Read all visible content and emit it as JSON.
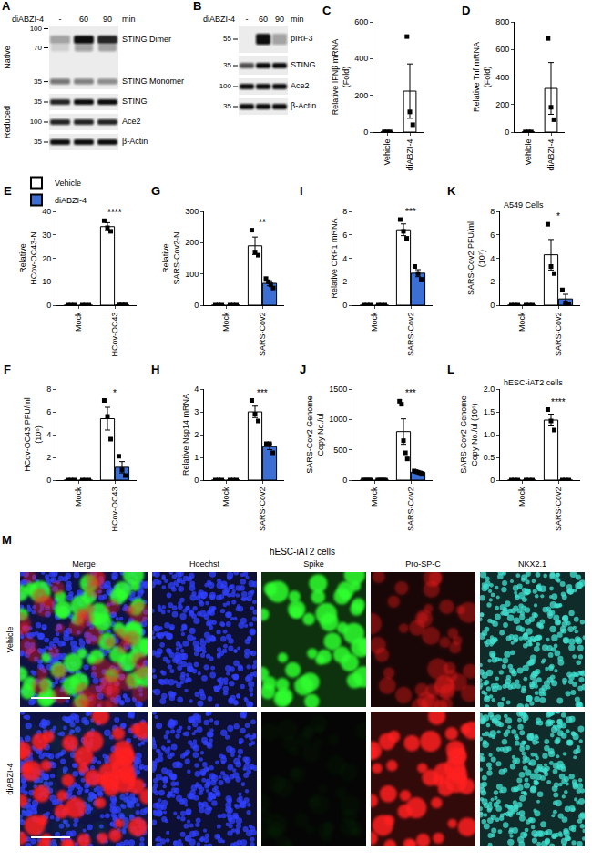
{
  "figure": {
    "A": {
      "letter": "A",
      "treatment": "diABZI-4",
      "lanes": [
        "-",
        "60",
        "90"
      ],
      "unit": "min",
      "sections": [
        {
          "label": "Native",
          "markers": [
            100,
            70,
            35
          ],
          "rows": [
            {
              "label": "STING Dimer",
              "bands": [
                0.35,
                1,
                0.9
              ]
            },
            {
              "label": "STING Monomer",
              "bands": [
                0.55,
                0.5,
                0.45
              ]
            }
          ]
        },
        {
          "label": "Reduced",
          "rows": [
            {
              "label": "STING",
              "marker": 35,
              "bands": [
                0.9,
                1,
                1
              ]
            },
            {
              "label": "Ace2",
              "marker": 100,
              "bands": [
                0.9,
                0.9,
                0.9
              ]
            },
            {
              "label": "β-Actin",
              "marker": 35,
              "bands": [
                1,
                1,
                1
              ]
            }
          ]
        }
      ]
    },
    "B": {
      "letter": "B",
      "treatment": "diABZI-4",
      "lanes": [
        "-",
        "60",
        "90"
      ],
      "unit": "min",
      "rows": [
        {
          "label": "pIRF3",
          "marker": 55,
          "bands": [
            0,
            1,
            0.35
          ]
        },
        {
          "label": "STING",
          "marker": 35,
          "bands": [
            0.7,
            1,
            1
          ]
        },
        {
          "label": "Ace2",
          "marker": 100,
          "bands": [
            1,
            1,
            1
          ]
        },
        {
          "label": "β-Actin",
          "marker": 35,
          "bands": [
            1,
            1,
            1
          ]
        }
      ]
    },
    "M": {
      "letter": "M",
      "title": "hESC-iAT2 cells",
      "columns": [
        "Merge",
        "Hoechst",
        "Spike",
        "Pro-SP-C",
        "NKX2.1"
      ],
      "channel_colors": [
        "#3040ff",
        "#30ff30",
        "#ff2020",
        "#40e0d0"
      ],
      "rows": [
        {
          "label": "Vehicle",
          "levels": [
            1,
            1,
            0.45,
            1
          ]
        },
        {
          "label": "diABZI-4",
          "levels": [
            1,
            0.03,
            1,
            1
          ]
        }
      ]
    }
  },
  "chart_data": [
    {
      "letter": "C",
      "type": "bar",
      "ylabel": "Relative IFNβ mRNA (Fold)",
      "categories": [
        "Vehicle",
        "diABZI-4"
      ],
      "values": [
        1,
        223
      ],
      "errors": [
        0.2,
        148
      ],
      "points": [
        [
          1,
          1,
          1
        ],
        [
          520,
          110,
          40
        ]
      ],
      "color": "#ffffff",
      "marker": "square",
      "ylim": [
        0,
        600
      ],
      "yticks": [
        0,
        200,
        400,
        600
      ]
    },
    {
      "letter": "D",
      "type": "bar",
      "ylabel": "Relative Tnf mRNA (Fold)",
      "categories": [
        "Vehicle",
        "diABZI-4"
      ],
      "values": [
        1,
        317
      ],
      "errors": [
        0.2,
        188
      ],
      "points": [
        [
          1,
          1,
          1
        ],
        [
          680,
          180,
          90
        ]
      ],
      "color": "#ffffff",
      "marker": "square",
      "ylim": [
        0,
        800
      ],
      "yticks": [
        0,
        200,
        400,
        600,
        800
      ]
    },
    {
      "letter": "E",
      "type": "bar",
      "ylabel": "Relative HCov-OC43-N",
      "categories": [
        "Mock",
        "HCov-OC43"
      ],
      "legend": "top left",
      "marker": "square",
      "series": [
        {
          "name": "Vehicle",
          "color": "#ffffff",
          "values": [
            0,
            33.5
          ],
          "errors": [
            0,
            1.7
          ],
          "points": [
            [
              0,
              0,
              0
            ],
            [
              36,
              33,
              31.5
            ]
          ]
        },
        {
          "name": "diABZI-4",
          "color": "#3b6fd4",
          "values": [
            0,
            0.1
          ],
          "errors": [
            0,
            0
          ],
          "points": [
            [
              0,
              0,
              0
            ],
            [
              0.1,
              0.1,
              0.1
            ]
          ]
        }
      ],
      "significance": [
        null,
        "****"
      ],
      "ylim": [
        0,
        40
      ],
      "yticks": [
        0,
        10,
        20,
        30,
        40
      ]
    },
    {
      "letter": "F",
      "type": "bar",
      "ylabel": "HCov-OC43 PFU/ml (10⁶)",
      "categories": [
        "Mock",
        "HCov-OC43"
      ],
      "marker": "square",
      "series": [
        {
          "name": "Vehicle",
          "color": "#ffffff",
          "values": [
            0,
            5.4
          ],
          "errors": [
            0,
            1.0
          ],
          "points": [
            [
              0,
              0,
              0
            ],
            [
              7.0,
              5.6,
              3.6
            ]
          ]
        },
        {
          "name": "diABZI-4",
          "color": "#3b6fd4",
          "values": [
            0,
            1.13
          ],
          "errors": [
            0,
            0.5
          ],
          "points": [
            [
              0,
              0,
              0
            ],
            [
              2.1,
              0.9,
              0.4
            ]
          ]
        }
      ],
      "significance": [
        null,
        "*"
      ],
      "ylim": [
        0,
        8
      ],
      "yticks": [
        0,
        2,
        4,
        6,
        8
      ]
    },
    {
      "letter": "G",
      "type": "bar",
      "ylabel": "Relative SARS-Cov2-N",
      "categories": [
        "Mock",
        "SARS-Cov2"
      ],
      "marker": "square",
      "series": [
        {
          "name": "Vehicle",
          "color": "#ffffff",
          "values": [
            0,
            190
          ],
          "errors": [
            0,
            28
          ],
          "points": [
            [
              0,
              0,
              0
            ],
            [
              240,
              170,
              160
            ]
          ]
        },
        {
          "name": "diABZI-4",
          "color": "#3b6fd4",
          "values": [
            0,
            70
          ],
          "errors": [
            0,
            8
          ],
          "points": [
            [
              0,
              0,
              0
            ],
            [
              85,
              75,
              65,
              55
            ]
          ]
        }
      ],
      "significance": [
        null,
        "**"
      ],
      "ylim": [
        0,
        300
      ],
      "yticks": [
        0,
        100,
        200,
        300
      ]
    },
    {
      "letter": "H",
      "type": "bar",
      "ylabel": "Relative Nsp14 mRNA",
      "categories": [
        "Mock",
        "SARS-Cov2"
      ],
      "marker": "square",
      "series": [
        {
          "name": "Vehicle",
          "color": "#ffffff",
          "values": [
            0,
            3.0
          ],
          "errors": [
            0,
            0.25
          ],
          "points": [
            [
              0,
              0,
              0
            ],
            [
              3.5,
              2.9,
              2.6
            ]
          ]
        },
        {
          "name": "diABZI-4",
          "color": "#3b6fd4",
          "values": [
            0,
            1.47
          ],
          "errors": [
            0,
            0.13
          ],
          "points": [
            [
              0,
              0,
              0
            ],
            [
              1.6,
              1.6,
              1.2
            ]
          ]
        }
      ],
      "significance": [
        null,
        "***"
      ],
      "ylim": [
        0,
        4
      ],
      "yticks": [
        0,
        1,
        2,
        3,
        4
      ]
    },
    {
      "letter": "I",
      "type": "bar",
      "ylabel": "Relative ORF1 mRNA",
      "categories": [
        "Mock",
        "SARS-Cov2"
      ],
      "marker": "square",
      "series": [
        {
          "name": "Vehicle",
          "color": "#ffffff",
          "values": [
            0,
            6.43
          ],
          "errors": [
            0,
            0.5
          ],
          "points": [
            [
              0,
              0,
              0
            ],
            [
              7.3,
              6.3,
              5.7
            ]
          ]
        },
        {
          "name": "diABZI-4",
          "color": "#3b6fd4",
          "values": [
            0,
            2.73
          ],
          "errors": [
            0,
            0.3
          ],
          "points": [
            [
              0,
              0,
              0
            ],
            [
              3.3,
              2.7,
              2.2
            ]
          ]
        }
      ],
      "significance": [
        null,
        "***"
      ],
      "ylim": [
        0,
        8
      ],
      "yticks": [
        0,
        2,
        4,
        6,
        8
      ]
    },
    {
      "letter": "J",
      "type": "bar",
      "ylabel": "SARS-Cov2 Genome Copy No./ul",
      "categories": [
        "Mock",
        "SARS-Cov2"
      ],
      "marker": "square",
      "series": [
        {
          "name": "Vehicle",
          "color": "#ffffff",
          "values": [
            0,
            800
          ],
          "errors": [
            0,
            210
          ],
          "points": [
            [
              0,
              0,
              0,
              0,
              0
            ],
            [
              1300,
              1250,
              650,
              450,
              350
            ]
          ]
        },
        {
          "name": "diABZI-4",
          "color": "#3b6fd4",
          "values": [
            0,
            130
          ],
          "errors": [
            0,
            8
          ],
          "points": [
            [
              0,
              0,
              0,
              0,
              0
            ],
            [
              150,
              140,
              130,
              120,
              110
            ]
          ]
        }
      ],
      "significance": [
        null,
        "***"
      ],
      "ylim": [
        0,
        1500
      ],
      "yticks": [
        0,
        500,
        1000,
        1500
      ]
    },
    {
      "letter": "K",
      "type": "bar",
      "ylabel": "SARS-Cov2 PFU/ml (10⁷)",
      "annotation": "A549 Cells",
      "categories": [
        "Mock",
        "SARS-Cov2"
      ],
      "marker": "square",
      "series": [
        {
          "name": "Vehicle",
          "color": "#ffffff",
          "values": [
            0,
            4.3
          ],
          "errors": [
            0,
            1.3
          ],
          "points": [
            [
              0,
              0,
              0
            ],
            [
              6.9,
              3.3,
              2.7
            ]
          ]
        },
        {
          "name": "diABZI-4",
          "color": "#3b6fd4",
          "values": [
            0,
            0.53
          ],
          "errors": [
            0,
            0.4
          ],
          "points": [
            [
              0,
              0,
              0
            ],
            [
              1.3,
              0.2,
              0.1
            ]
          ]
        }
      ],
      "significance": [
        null,
        "*"
      ],
      "ylim": [
        0,
        8
      ],
      "yticks": [
        0,
        2,
        4,
        6,
        8
      ]
    },
    {
      "letter": "L",
      "type": "bar",
      "ylabel": "SARS-Cov2 Genome Copy No./ul (10⁶)",
      "annotation": "hESC-iAT2 cells",
      "categories": [
        "Mock",
        "SARS-Cov2"
      ],
      "marker": "square",
      "series": [
        {
          "name": "Vehicle",
          "color": "#ffffff",
          "values": [
            0,
            1.32
          ],
          "errors": [
            0,
            0.13
          ],
          "points": [
            [
              0,
              0,
              0
            ],
            [
              1.55,
              1.3,
              1.1
            ]
          ]
        },
        {
          "name": "diABZI-4",
          "color": "#3b6fd4",
          "values": [
            0,
            0
          ],
          "errors": [
            0,
            0
          ],
          "points": [
            [
              0,
              0,
              0
            ],
            [
              0,
              0,
              0
            ]
          ]
        }
      ],
      "significance": [
        null,
        "****"
      ],
      "ylim": [
        0,
        2
      ],
      "yticks": [
        0,
        0.5,
        {
          "value": 1,
          "label": "1.0"
        },
        1.5,
        {
          "value": 2,
          "label": "2.0"
        }
      ]
    }
  ]
}
